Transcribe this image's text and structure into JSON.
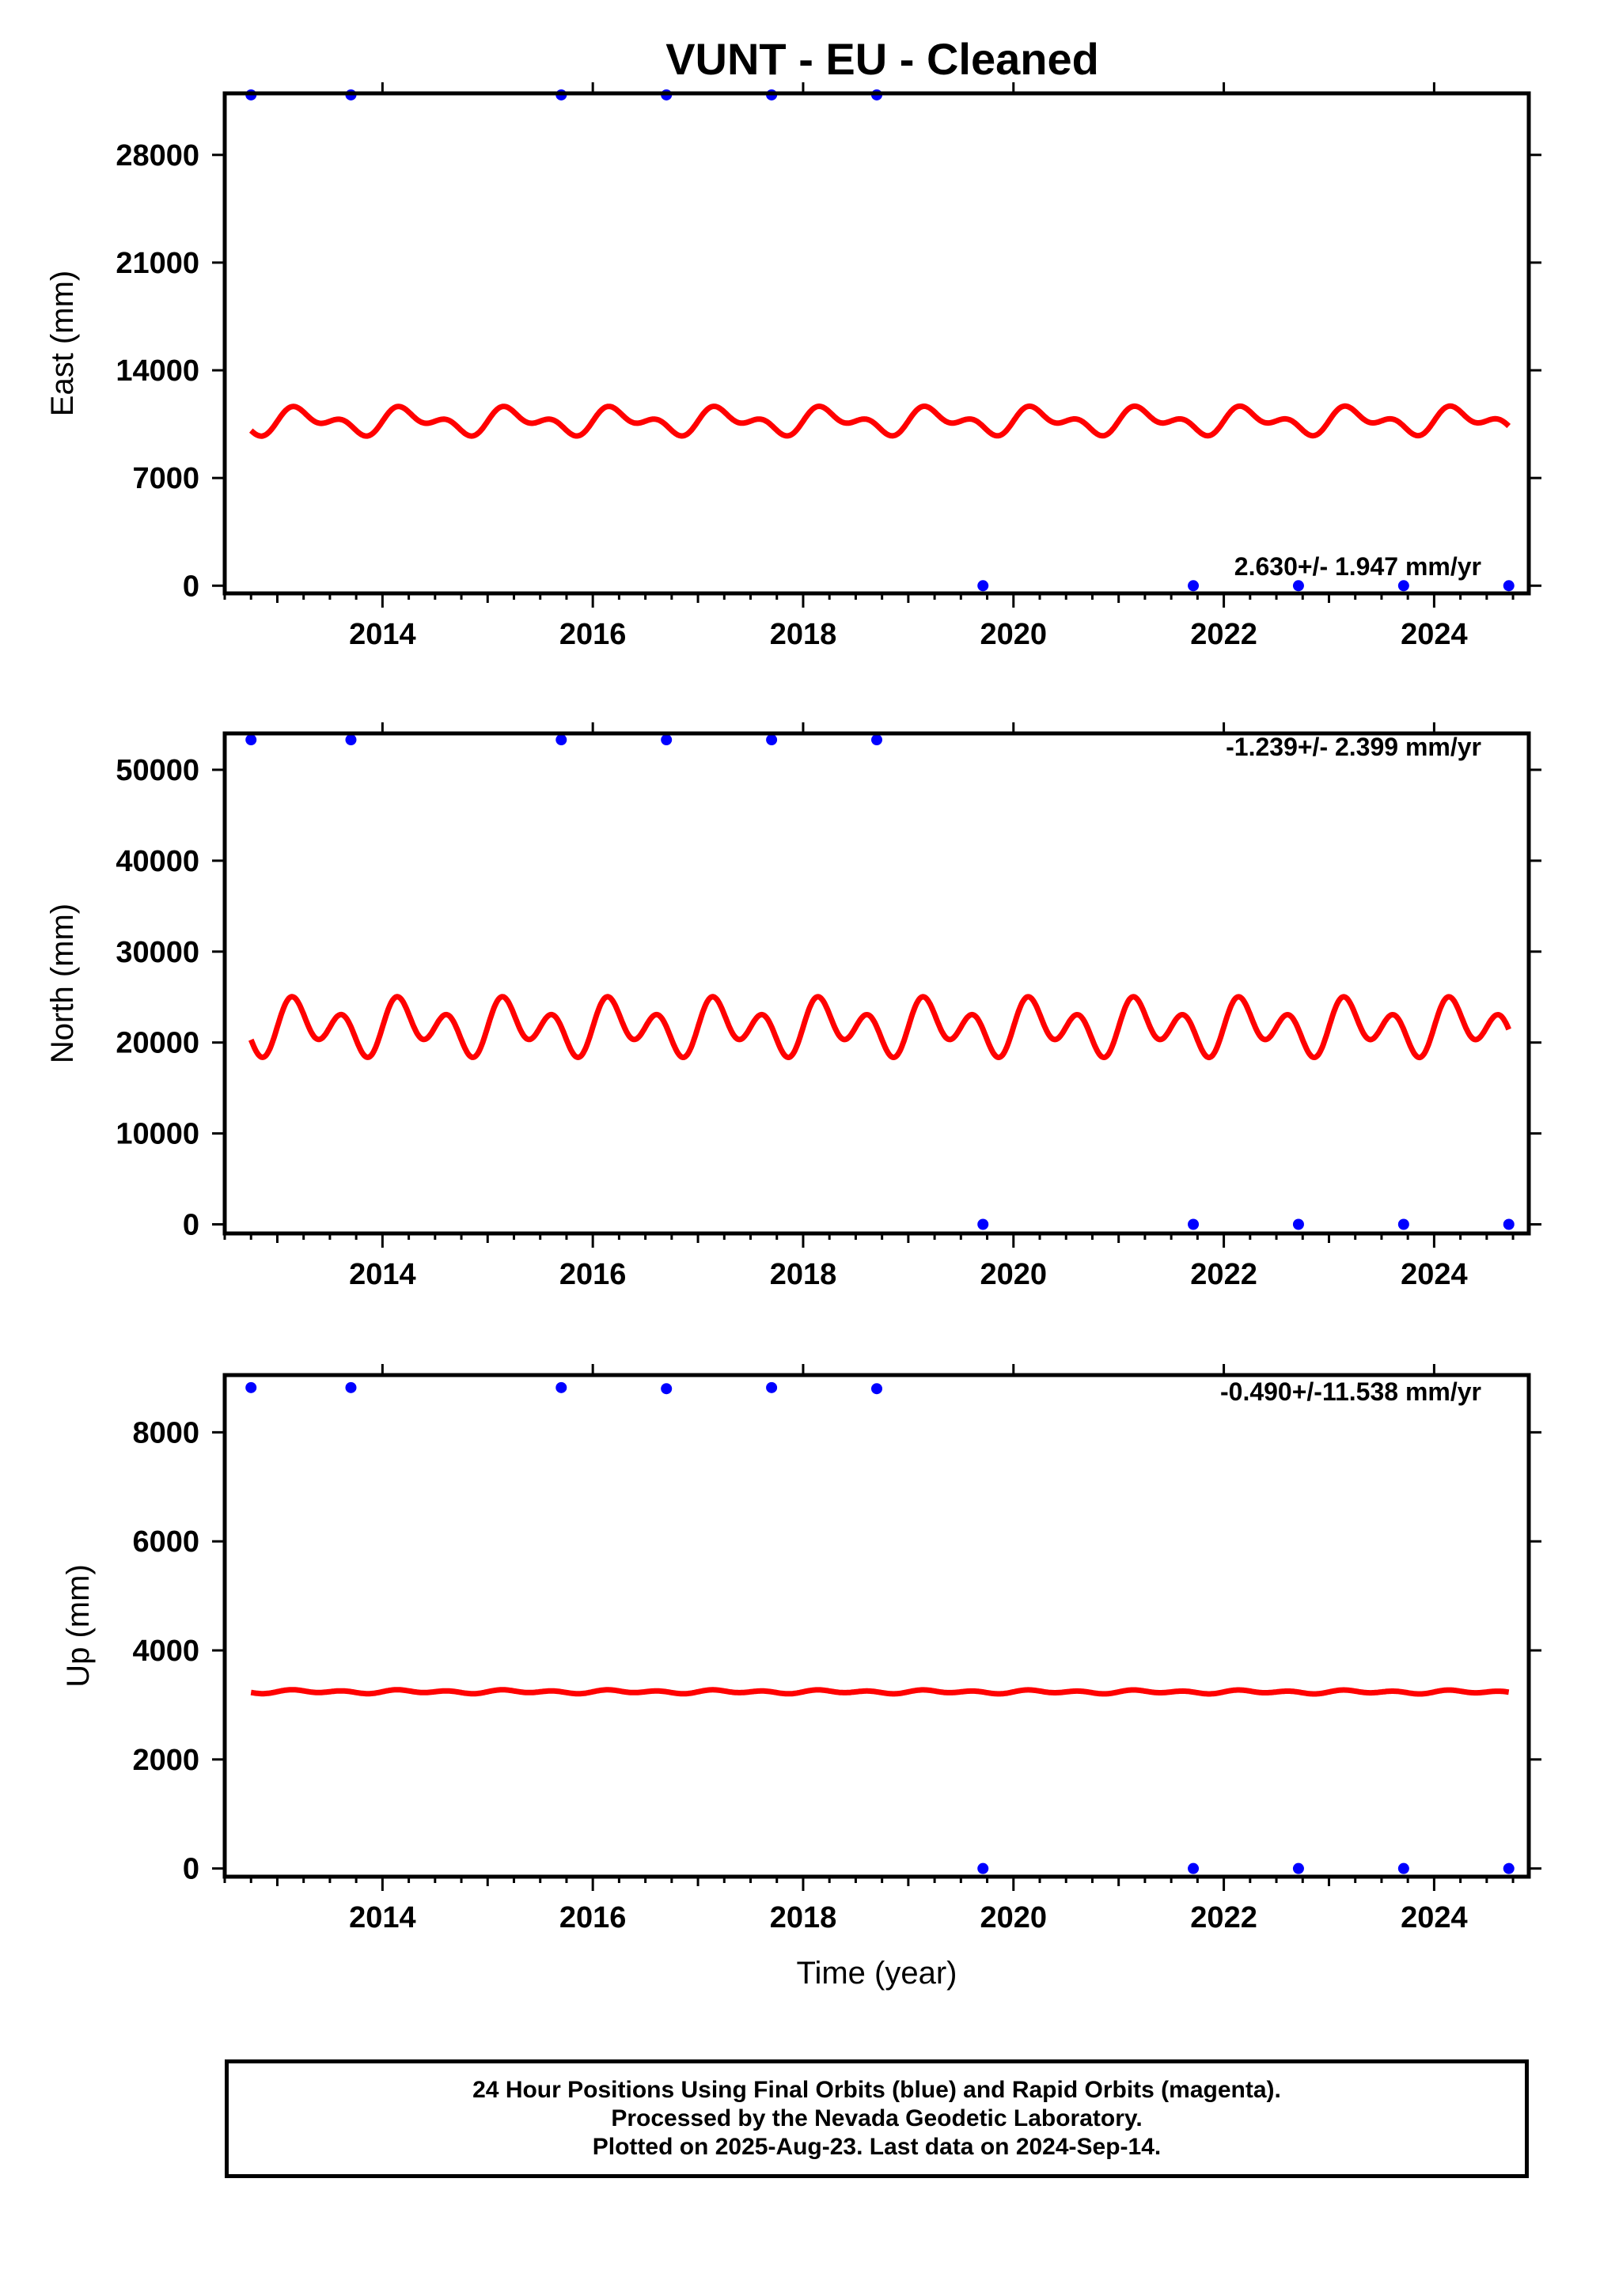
{
  "title": "VUNT  - EU - Cleaned",
  "xlabel": "Time (year)",
  "footer": {
    "line1": "24 Hour Positions Using Final Orbits (blue) and Rapid Orbits (magenta).",
    "line2": "Processed by the Nevada Geodetic Laboratory.",
    "line3": "Plotted on 2025-Aug-23. Last data on 2024-Sep-14."
  },
  "colors": {
    "points": "#0000ff",
    "model": "#ff0000",
    "axes": "#000000"
  },
  "chart_data": [
    {
      "type": "scatter",
      "ylabel": "East (mm)",
      "rate_label": "2.630+/- 1.947 mm/yr",
      "xlim": [
        2012.5,
        2024.9
      ],
      "ylim": [
        -500,
        32000
      ],
      "yticks": [
        0,
        7000,
        14000,
        21000,
        28000
      ],
      "xticks": [
        2014,
        2016,
        2018,
        2020,
        2022,
        2024
      ],
      "grid": false,
      "points": {
        "name": "Final Orbits",
        "x": [
          2012.75,
          2013.7,
          2015.7,
          2016.7,
          2017.7,
          2018.7,
          2019.71,
          2021.71,
          2022.71,
          2023.71,
          2024.71
        ],
        "y": [
          31900,
          31900,
          31900,
          31900,
          31900,
          31900,
          0,
          0,
          0,
          0,
          0
        ]
      },
      "model": {
        "x_start": 2012.75,
        "x_end": 2024.71,
        "mean": 10700,
        "annual_amplitude": 600,
        "semiannual_amplitude": 500,
        "trend_mm_per_yr": 2.63
      }
    },
    {
      "type": "scatter",
      "ylabel": "North (mm)",
      "rate_label": "-1.239+/- 2.399 mm/yr",
      "xlim": [
        2012.5,
        2024.9
      ],
      "ylim": [
        -1000,
        54000
      ],
      "yticks": [
        0,
        10000,
        20000,
        30000,
        40000,
        50000
      ],
      "xticks": [
        2014,
        2016,
        2018,
        2020,
        2022,
        2024
      ],
      "grid": false,
      "points": {
        "name": "Final Orbits",
        "x": [
          2012.75,
          2013.7,
          2015.7,
          2016.7,
          2017.7,
          2018.7,
          2019.71,
          2021.71,
          2022.71,
          2023.71,
          2024.71
        ],
        "y": [
          53300,
          53300,
          53300,
          53300,
          53300,
          53300,
          0,
          0,
          0,
          0,
          0
        ]
      },
      "model": {
        "x_start": 2012.75,
        "x_end": 2024.71,
        "mean": 21700,
        "annual_amplitude": 1400,
        "semiannual_amplitude": 2300,
        "trend_mm_per_yr": -1.239
      }
    },
    {
      "type": "scatter",
      "ylabel": "Up (mm)",
      "rate_label": "-0.490+/-11.538 mm/yr",
      "xlim": [
        2012.5,
        2024.9
      ],
      "ylim": [
        -150,
        9050
      ],
      "yticks": [
        0,
        2000,
        4000,
        6000,
        8000
      ],
      "xticks": [
        2014,
        2016,
        2018,
        2020,
        2022,
        2024
      ],
      "grid": false,
      "points": {
        "name": "Final Orbits",
        "x": [
          2012.75,
          2013.7,
          2015.7,
          2016.7,
          2017.7,
          2018.7,
          2019.71,
          2021.71,
          2022.71,
          2023.71,
          2024.71
        ],
        "y": [
          8820,
          8820,
          8820,
          8800,
          8820,
          8800,
          0,
          0,
          0,
          0,
          0
        ]
      },
      "model": {
        "x_start": 2012.75,
        "x_end": 2024.71,
        "mean": 3240,
        "annual_amplitude": 15,
        "semiannual_amplitude": 25,
        "trend_mm_per_yr": -0.49
      }
    }
  ]
}
